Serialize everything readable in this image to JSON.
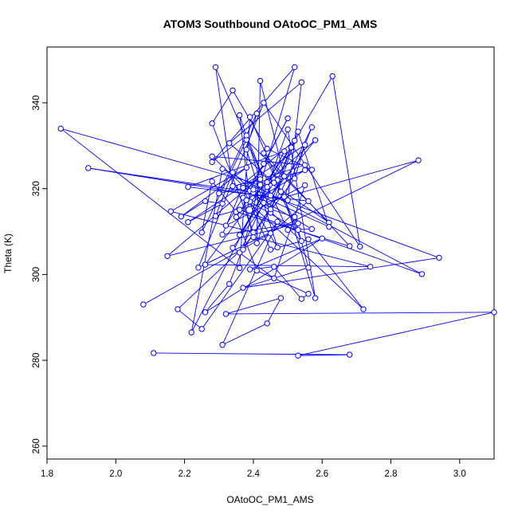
{
  "chart_data": {
    "type": "line",
    "title": "ATOM3 Southbound OAtoOC_PM1_AMS",
    "xlabel": "OAtoOC_PM1_AMS",
    "ylabel": "Theta (K)",
    "xlim": [
      1.8,
      3.1
    ],
    "ylim": [
      257,
      353
    ],
    "xticks": [
      "1.8",
      "2.0",
      "2.2",
      "2.4",
      "2.6",
      "2.8",
      "3.0"
    ],
    "yticks": [
      "260",
      "280",
      "300",
      "320",
      "340"
    ],
    "series_color": "#0000ff",
    "marker": "open-circle",
    "legend": "none",
    "grid": false,
    "x": [
      2.11,
      2.68,
      2.53,
      3.1,
      2.32,
      2.48,
      2.44,
      2.31,
      2.47,
      2.25,
      2.18,
      2.37,
      2.33,
      2.26,
      2.6,
      2.39,
      2.46,
      2.54,
      2.56,
      2.41,
      2.35,
      2.42,
      2.43,
      2.36,
      2.52,
      2.55,
      2.21,
      2.31,
      2.26,
      2.19,
      2.38,
      2.16,
      2.4,
      2.28,
      2.34,
      2.44,
      2.57,
      2.34,
      2.29,
      2.45,
      2.58,
      2.44,
      2.3,
      2.41,
      2.38,
      2.47,
      2.39,
      2.36,
      2.45,
      2.52,
      2.36,
      2.57,
      2.5,
      2.43,
      2.62,
      2.38,
      2.25,
      2.28,
      2.35,
      2.68,
      2.43,
      2.53,
      2.37,
      2.4,
      2.74,
      2.26,
      2.51,
      2.41,
      2.42,
      2.49,
      2.34,
      2.46,
      2.55,
      2.32,
      2.43,
      2.5,
      2.39,
      2.37,
      2.31,
      2.53,
      2.15,
      2.42,
      2.37,
      2.45,
      2.56,
      2.72,
      2.38,
      2.46,
      2.54,
      2.28,
      2.55,
      2.42,
      2.37,
      2.48,
      2.57,
      2.49,
      2.58,
      2.5,
      2.44,
      2.38,
      2.28,
      2.52,
      2.42,
      1.84,
      2.36,
      2.39,
      2.47,
      2.53,
      2.62,
      2.4,
      1.92,
      2.5,
      2.54,
      2.33,
      2.46,
      2.36,
      2.63,
      2.71,
      2.43,
      2.24,
      2.88,
      2.29,
      2.34,
      2.45,
      2.52,
      2.56,
      2.37,
      2.94,
      2.4,
      2.55,
      2.36,
      2.89,
      2.31,
      2.22,
      2.49,
      2.21,
      2.56,
      2.45,
      2.08
    ],
    "y": [
      281.7,
      281.3,
      281.1,
      291.2,
      290.8,
      294.5,
      288.6,
      283.6,
      312.3,
      287.3,
      291.9,
      306.2,
      297.8,
      291.2,
      308.4,
      301.2,
      301.8,
      294.3,
      295.5,
      300.9,
      313.4,
      321.8,
      316.7,
      305.1,
      322.4,
      330.2,
      312.2,
      316.5,
      317.1,
      313.5,
      324.9,
      314.7,
      309.8,
      335.2,
      342.9,
      329.3,
      324.4,
      320.6,
      348.3,
      318.4,
      331.3,
      321.5,
      318.9,
      337.5,
      329.1,
      306.3,
      317.0,
      337.1,
      314.4,
      331.2,
      320.4,
      310.6,
      310.4,
      322.4,
      312.1,
      331.4,
      309.8,
      321.7,
      314.6,
      306.6,
      328.3,
      310.4,
      317.9,
      308.7,
      301.8,
      302.3,
      329.6,
      307.3,
      345.1,
      322.9,
      306.2,
      299.1,
      320.8,
      311.4,
      325.8,
      336.4,
      319.5,
      320.6,
      309.3,
      311.9,
      304.3,
      322.7,
      320.2,
      305.8,
      308.2,
      291.9,
      317.3,
      322.2,
      307.8,
      327.5,
      325.5,
      322.2,
      305.8,
      319.3,
      334.3,
      318.1,
      294.5,
      333.8,
      320.4,
      332.4,
      326.2,
      348.3,
      320.9,
      334.0,
      301.5,
      336.7,
      322.0,
      333.3,
      311.1,
      319.1,
      324.8,
      317.3,
      344.8,
      330.6,
      321.4,
      309.2,
      346.2,
      306.5,
      340.0,
      301.6,
      326.6,
      313.6,
      323.8,
      315.2,
      313.4,
      301.6,
      296.9,
      303.9,
      319.8,
      324.3,
      315.1,
      300.1,
      324.6,
      286.5,
      328.7,
      320.4,
      317.1,
      309.6,
      293.0
    ]
  }
}
